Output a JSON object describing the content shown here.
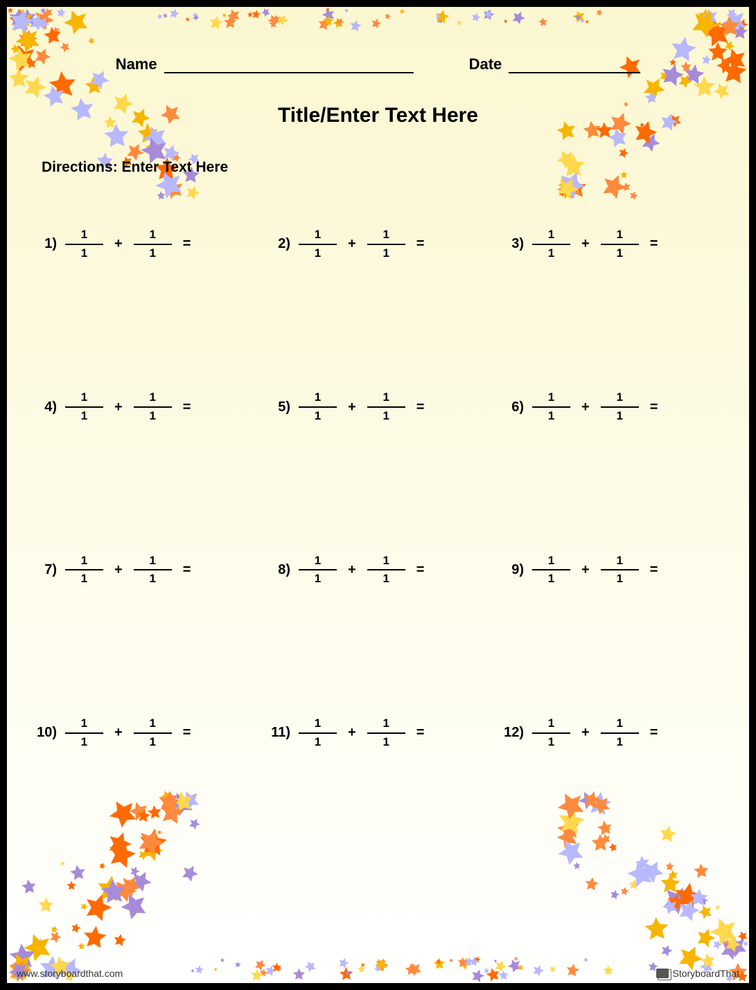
{
  "header": {
    "name_label": "Name",
    "date_label": "Date"
  },
  "title": "Title/Enter Text Here",
  "directions_label": "Directions:",
  "directions_text": "Enter Text Here",
  "problems": [
    {
      "n": "1)",
      "a_num": "1",
      "a_den": "1",
      "op": "+",
      "b_num": "1",
      "b_den": "1"
    },
    {
      "n": "2)",
      "a_num": "1",
      "a_den": "1",
      "op": "+",
      "b_num": "1",
      "b_den": "1"
    },
    {
      "n": "3)",
      "a_num": "1",
      "a_den": "1",
      "op": "+",
      "b_num": "1",
      "b_den": "1"
    },
    {
      "n": "4)",
      "a_num": "1",
      "a_den": "1",
      "op": "+",
      "b_num": "1",
      "b_den": "1"
    },
    {
      "n": "5)",
      "a_num": "1",
      "a_den": "1",
      "op": "+",
      "b_num": "1",
      "b_den": "1"
    },
    {
      "n": "6)",
      "a_num": "1",
      "a_den": "1",
      "op": "+",
      "b_num": "1",
      "b_den": "1"
    },
    {
      "n": "7)",
      "a_num": "1",
      "a_den": "1",
      "op": "+",
      "b_num": "1",
      "b_den": "1"
    },
    {
      "n": "8)",
      "a_num": "1",
      "a_den": "1",
      "op": "+",
      "b_num": "1",
      "b_den": "1"
    },
    {
      "n": "9)",
      "a_num": "1",
      "a_den": "1",
      "op": "+",
      "b_num": "1",
      "b_den": "1"
    },
    {
      "n": "10)",
      "a_num": "1",
      "a_den": "1",
      "op": "+",
      "b_num": "1",
      "b_den": "1"
    },
    {
      "n": "11)",
      "a_num": "1",
      "a_den": "1",
      "op": "+",
      "b_num": "1",
      "b_den": "1"
    },
    {
      "n": "12)",
      "a_num": "1",
      "a_den": "1",
      "op": "+",
      "b_num": "1",
      "b_den": "1"
    }
  ],
  "equals": "=",
  "footer": {
    "url": "www.storyboardthat.com",
    "brand": "StoryboardThat"
  },
  "decor": {
    "star_colors": [
      "#f7b500",
      "#ff8a3d",
      "#a78bd9",
      "#b8b8ff",
      "#ffd84d",
      "#ff6a00"
    ],
    "background_gradient": [
      "#fbf7d0",
      "#ffffff"
    ]
  }
}
